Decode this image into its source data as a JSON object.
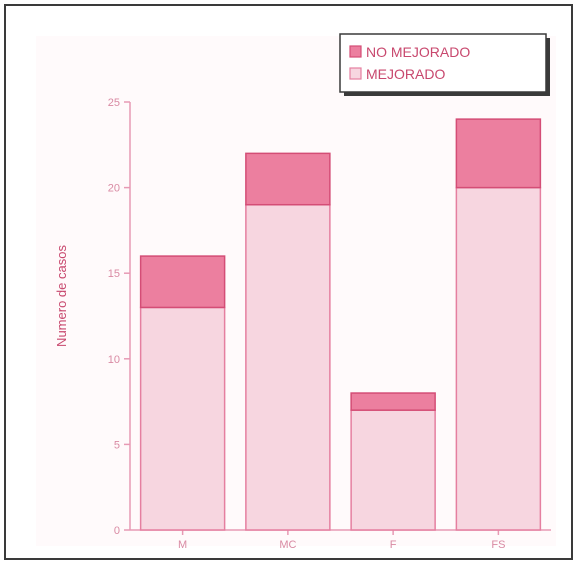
{
  "chart_data": {
    "type": "bar",
    "stacked": true,
    "categories": [
      "M",
      "MC",
      "F",
      "FS"
    ],
    "series": [
      {
        "name": "MEJORADO",
        "values": [
          13,
          19,
          7,
          20
        ],
        "color": "#f7d6e0",
        "edge": "#e57fa0"
      },
      {
        "name": "NO MEJORADO",
        "values": [
          3,
          3,
          1,
          4
        ],
        "color": "#ec7f9f",
        "edge": "#d44d76"
      }
    ],
    "ylabel": "Numero de casos",
    "xlabel": "",
    "title": "",
    "ylim": [
      0,
      25
    ],
    "yticks": [
      0,
      5,
      10,
      15,
      20,
      25
    ],
    "grid": false,
    "legend_position": "top-right",
    "colors": {
      "axis": "#e79ab4",
      "text": "#c8486e",
      "background": "#fffafb"
    }
  }
}
